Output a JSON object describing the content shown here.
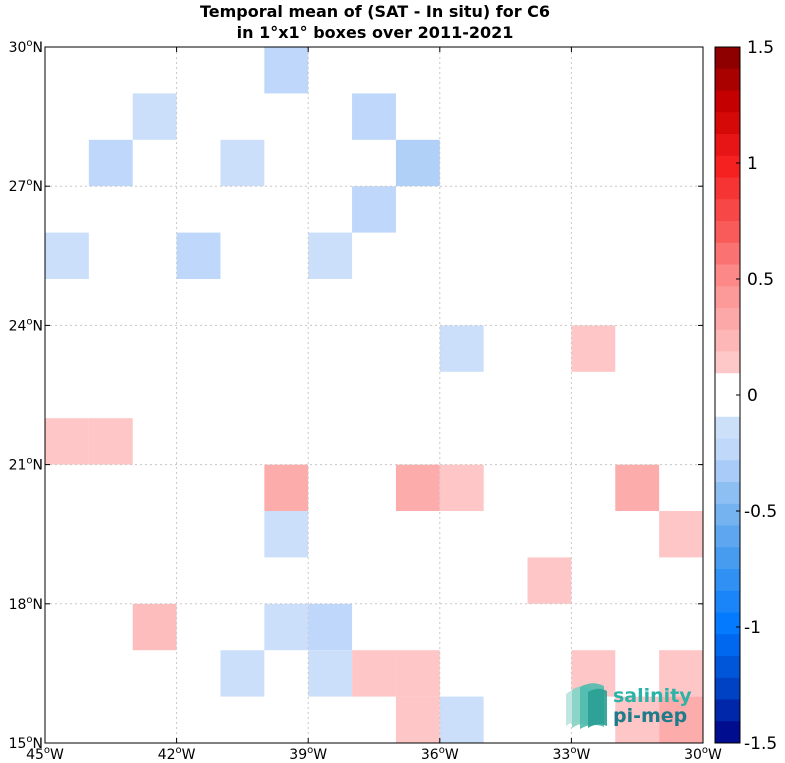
{
  "chart_data": {
    "type": "heatmap",
    "title": "Temporal mean of (SAT - In situ) for C6",
    "subtitle": "in 1°x1° boxes over 2011-2021",
    "xlim": [
      -45,
      -30
    ],
    "ylim": [
      15,
      30
    ],
    "x_ticks": [
      {
        "value": -45,
        "deg": "45",
        "hem": "W"
      },
      {
        "value": -42,
        "deg": "42",
        "hem": "W"
      },
      {
        "value": -39,
        "deg": "39",
        "hem": "W"
      },
      {
        "value": -36,
        "deg": "36",
        "hem": "W"
      },
      {
        "value": -33,
        "deg": "33",
        "hem": "W"
      },
      {
        "value": -30,
        "deg": "30",
        "hem": "W"
      }
    ],
    "y_ticks": [
      {
        "value": 15,
        "deg": "15",
        "hem": "N"
      },
      {
        "value": 18,
        "deg": "18",
        "hem": "N"
      },
      {
        "value": 21,
        "deg": "21",
        "hem": "N"
      },
      {
        "value": 24,
        "deg": "24",
        "hem": "N"
      },
      {
        "value": 27,
        "deg": "27",
        "hem": "N"
      },
      {
        "value": 30,
        "deg": "30",
        "hem": "N"
      }
    ],
    "grid": true,
    "colorbar": {
      "vmin": -1.5,
      "vmax": 1.5,
      "levels": 32,
      "ticks": [
        {
          "value": 1.5,
          "label": "1.5"
        },
        {
          "value": 1,
          "label": "1"
        },
        {
          "value": 0.5,
          "label": "0.5"
        },
        {
          "value": 0,
          "label": "0"
        },
        {
          "value": -0.5,
          "label": "-0.5"
        },
        {
          "value": -1,
          "label": "-1"
        },
        {
          "value": -1.5,
          "label": "-1.5"
        }
      ]
    },
    "cells": [
      {
        "lon": -40,
        "lat": 29,
        "value": -0.25
      },
      {
        "lon": -43,
        "lat": 28,
        "value": -0.15
      },
      {
        "lon": -38,
        "lat": 28,
        "value": -0.25
      },
      {
        "lon": -44,
        "lat": 27,
        "value": -0.25
      },
      {
        "lon": -41,
        "lat": 27,
        "value": -0.15
      },
      {
        "lon": -37,
        "lat": 27,
        "value": -0.3
      },
      {
        "lon": -38,
        "lat": 26,
        "value": -0.25
      },
      {
        "lon": -45,
        "lat": 25,
        "value": -0.15
      },
      {
        "lon": -42,
        "lat": 25,
        "value": -0.25
      },
      {
        "lon": -39,
        "lat": 25,
        "value": -0.15
      },
      {
        "lon": -36,
        "lat": 23,
        "value": -0.15
      },
      {
        "lon": -33,
        "lat": 23,
        "value": 0.15
      },
      {
        "lon": -45,
        "lat": 21,
        "value": 0.15
      },
      {
        "lon": -44,
        "lat": 21,
        "value": 0.15
      },
      {
        "lon": -40,
        "lat": 20,
        "value": 0.3
      },
      {
        "lon": -37,
        "lat": 20,
        "value": 0.3
      },
      {
        "lon": -36,
        "lat": 20,
        "value": 0.15
      },
      {
        "lon": -32,
        "lat": 20,
        "value": 0.3
      },
      {
        "lon": -31,
        "lat": 19,
        "value": 0.15
      },
      {
        "lon": -40,
        "lat": 19,
        "value": -0.15
      },
      {
        "lon": -34,
        "lat": 18,
        "value": 0.15
      },
      {
        "lon": -43,
        "lat": 17,
        "value": 0.2
      },
      {
        "lon": -40,
        "lat": 17,
        "value": -0.15
      },
      {
        "lon": -39,
        "lat": 17,
        "value": -0.25
      },
      {
        "lon": -41,
        "lat": 16,
        "value": -0.15
      },
      {
        "lon": -39,
        "lat": 16,
        "value": -0.15
      },
      {
        "lon": -38,
        "lat": 16,
        "value": 0.15
      },
      {
        "lon": -37,
        "lat": 16,
        "value": 0.15
      },
      {
        "lon": -33,
        "lat": 16,
        "value": 0.15
      },
      {
        "lon": -31,
        "lat": 16,
        "value": 0.15
      },
      {
        "lon": -37,
        "lat": 15,
        "value": 0.15
      },
      {
        "lon": -36,
        "lat": 15,
        "value": -0.15
      },
      {
        "lon": -32,
        "lat": 15,
        "value": 0.15
      },
      {
        "lon": -31,
        "lat": 15,
        "value": 0.3
      }
    ]
  },
  "logo": {
    "line1": "salinity",
    "line2": "pi-mep"
  },
  "colors": {
    "background": "#ffffff",
    "grid": "#c8c8c8",
    "logo_teal": "#2bb3a7",
    "logo_dark": "#1e7b8a"
  }
}
